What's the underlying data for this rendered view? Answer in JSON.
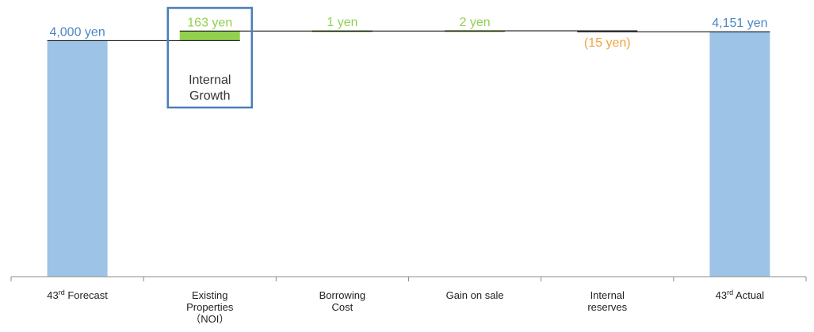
{
  "chart_data": {
    "type": "bar",
    "subtype": "waterfall",
    "categories": [
      {
        "lines": [
          "43|rd| Forecast"
        ]
      },
      {
        "lines": [
          "Existing",
          "Properties",
          "（NOI）"
        ]
      },
      {
        "lines": [
          "Borrowing",
          "Cost"
        ]
      },
      {
        "lines": [
          "Gain on sale"
        ]
      },
      {
        "lines": [
          "Internal",
          "reserves"
        ]
      },
      {
        "lines": [
          "43|rd| Actual"
        ]
      }
    ],
    "steps": [
      {
        "kind": "total",
        "value": 4000,
        "label": "4,000 yen"
      },
      {
        "kind": "delta",
        "value": 163,
        "label": "163 yen"
      },
      {
        "kind": "delta",
        "value": 1,
        "label": "1 yen"
      },
      {
        "kind": "delta",
        "value": 2,
        "label": "2 yen"
      },
      {
        "kind": "delta",
        "value": -15,
        "label": "(15 yen)"
      },
      {
        "kind": "total",
        "value": 4151,
        "label": "4,151 yen"
      }
    ],
    "colors": {
      "total": "#9dc3e6",
      "increase": "#92d050",
      "decrease": "#f4b183",
      "total_label": "#4a86c5",
      "increase_label": "#92d050",
      "decrease_label": "#f5a142",
      "connector": "#000000",
      "highlight_box": "#4a7ebb"
    },
    "annotation": {
      "category_index": 1,
      "lines": [
        "Internal",
        "Growth"
      ]
    },
    "baseline_value": 0,
    "ylim_top": 4180,
    "xlabel": "",
    "ylabel": "",
    "grid": false,
    "legend": "none"
  }
}
